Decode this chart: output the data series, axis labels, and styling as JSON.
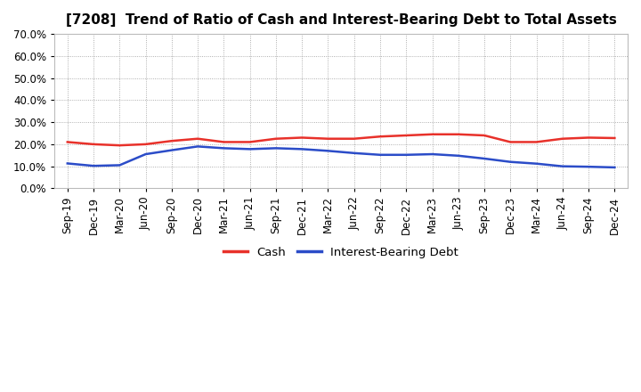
{
  "title": "[7208]  Trend of Ratio of Cash and Interest-Bearing Debt to Total Assets",
  "x_labels": [
    "Sep-19",
    "Dec-19",
    "Mar-20",
    "Jun-20",
    "Sep-20",
    "Dec-20",
    "Mar-21",
    "Jun-21",
    "Sep-21",
    "Dec-21",
    "Mar-22",
    "Jun-22",
    "Sep-22",
    "Dec-22",
    "Mar-23",
    "Jun-23",
    "Sep-23",
    "Dec-23",
    "Mar-24",
    "Jun-24",
    "Sep-24",
    "Dec-24"
  ],
  "cash": [
    0.21,
    0.2,
    0.195,
    0.2,
    0.215,
    0.225,
    0.21,
    0.21,
    0.225,
    0.23,
    0.225,
    0.225,
    0.235,
    0.24,
    0.245,
    0.245,
    0.24,
    0.21,
    0.21,
    0.225,
    0.23,
    0.228
  ],
  "interest_bearing_debt": [
    0.113,
    0.102,
    0.105,
    0.155,
    0.173,
    0.19,
    0.182,
    0.178,
    0.182,
    0.178,
    0.17,
    0.16,
    0.152,
    0.152,
    0.155,
    0.148,
    0.135,
    0.12,
    0.112,
    0.1,
    0.098,
    0.095
  ],
  "cash_color": "#e8312a",
  "debt_color": "#2b4cc8",
  "background_color": "#ffffff",
  "plot_bg_color": "#ffffff",
  "grid_color": "#999999",
  "ylim": [
    0.0,
    0.7
  ],
  "yticks": [
    0.0,
    0.1,
    0.2,
    0.3,
    0.4,
    0.5,
    0.6,
    0.7
  ],
  "legend_cash": "Cash",
  "legend_debt": "Interest-Bearing Debt",
  "line_width": 1.8
}
